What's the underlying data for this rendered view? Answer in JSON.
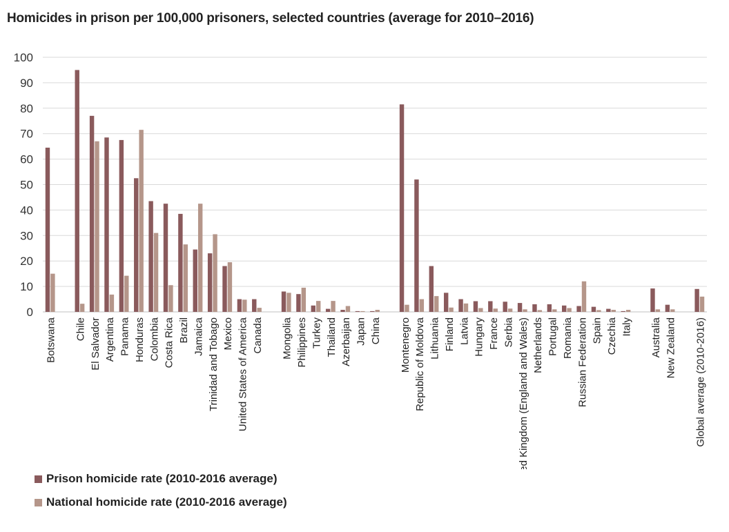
{
  "chart_data": {
    "type": "bar",
    "title": "Homicides in prison per 100,000 prisoners, selected countries (average for 2010–2016)",
    "xlabel": "",
    "ylabel": "",
    "ylim": [
      0,
      100
    ],
    "yticks": [
      0,
      10,
      20,
      30,
      40,
      50,
      60,
      70,
      80,
      90,
      100
    ],
    "grid": true,
    "legend_position": "bottom-left",
    "groups": [
      [
        "Botswana"
      ],
      [
        "Chile",
        "El Salvador",
        "Argentina",
        "Panama",
        "Honduras",
        "Colombia",
        "Costa Rica",
        "Brazil",
        "Jamaica",
        "Trinidad and Tobago",
        "Mexico",
        "United States of America",
        "Canada"
      ],
      [
        "Mongolia",
        "Philippines",
        "Turkey",
        "Thailand",
        "Azerbaijan",
        "Japan",
        "China"
      ],
      [
        "Montenegro",
        "Republic of Moldova",
        "Lithuania",
        "Finland",
        "Latvia",
        "Hungary",
        "France",
        "Serbia",
        "United Kingdom (England and Wales)",
        "Netherlands",
        "Portugal",
        "Romania",
        "Russian Federation",
        "Spain",
        "Czechia",
        "Italy"
      ],
      [
        "Australia",
        "New Zealand"
      ],
      [
        "Global average (2010-2016)"
      ]
    ],
    "categories": [
      "Botswana",
      "Chile",
      "El Salvador",
      "Argentina",
      "Panama",
      "Honduras",
      "Colombia",
      "Costa Rica",
      "Brazil",
      "Jamaica",
      "Trinidad and Tobago",
      "Mexico",
      "United States of America",
      "Canada",
      "Mongolia",
      "Philippines",
      "Turkey",
      "Thailand",
      "Azerbaijan",
      "Japan",
      "China",
      "Montenegro",
      "Republic of Moldova",
      "Lithuania",
      "Finland",
      "Latvia",
      "Hungary",
      "France",
      "Serbia",
      "United Kingdom (England and Wales)",
      "Netherlands",
      "Portugal",
      "Romania",
      "Russian Federation",
      "Spain",
      "Czechia",
      "Italy",
      "Australia",
      "New Zealand",
      "Global average (2010-2016)"
    ],
    "series": [
      {
        "name": "Prison homicide rate (2010-2016 average)",
        "color": "#8a5a5c",
        "values": [
          64.5,
          95,
          77,
          68.5,
          67.5,
          52.5,
          43.5,
          42.5,
          38.5,
          24.5,
          23,
          18,
          5,
          5,
          8,
          7,
          2.5,
          1.2,
          0.8,
          0.3,
          0.3,
          81.5,
          52,
          18,
          7.5,
          5,
          4.2,
          4.2,
          4,
          3.5,
          3,
          3,
          2.5,
          2.3,
          2,
          1.2,
          0.3,
          9.2,
          2.8,
          9
        ]
      },
      {
        "name": "National homicide rate (2010-2016 average)",
        "color": "#b5968a",
        "values": [
          15,
          3.2,
          67,
          6.8,
          14.2,
          71.5,
          31,
          10.5,
          26.5,
          42.5,
          30.5,
          19.5,
          4.8,
          1.6,
          7.5,
          9.5,
          4.3,
          4.3,
          2.3,
          0.3,
          0.8,
          2.8,
          5,
          6.2,
          1.7,
          3.3,
          1.5,
          1.3,
          1.3,
          1.0,
          0.7,
          1.0,
          1.5,
          12,
          0.7,
          0.8,
          0.8,
          1.0,
          1.0,
          6.0
        ]
      }
    ]
  }
}
